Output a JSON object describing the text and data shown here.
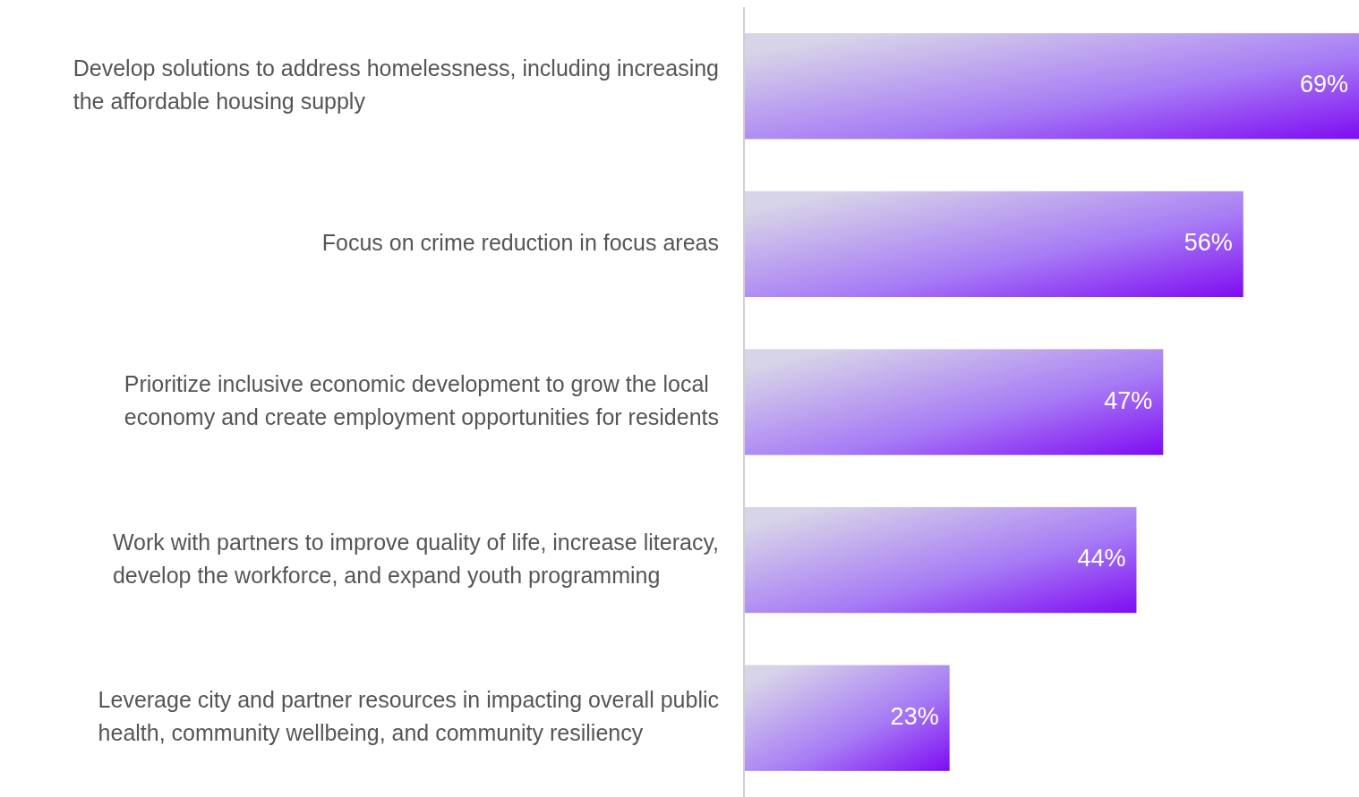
{
  "chart_data": {
    "type": "bar",
    "orientation": "horizontal",
    "value_labels": [
      "69%",
      "56%",
      "47%",
      "44%",
      "23%"
    ],
    "categories": [
      "Develop solutions to address homelessness, including increasing the affordable housing supply",
      "Focus on crime reduction in focus areas",
      "Prioritize inclusive economic development to grow the local economy and create employment opportunities for residents",
      "Work with partners to improve quality of life, increase literacy, develop the workforce, and expand youth programming",
      "Leverage city and partner resources in impacting overall public health, community wellbeing, and community resiliency"
    ],
    "values": [
      69,
      56,
      47,
      44,
      23
    ],
    "color": "#a77cf5"
  }
}
